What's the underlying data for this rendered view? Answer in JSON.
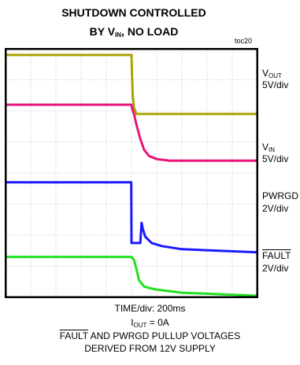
{
  "title": {
    "line1": "SHUTDOWN CONTROLLED",
    "line2_pre": "BY V",
    "line2_sub": "IN",
    "line2_post": ", NO LOAD"
  },
  "tag": "toc20",
  "colors": {
    "vout": "#a8a400",
    "vin": "#e8147a",
    "pwrgd": "#1a1aff",
    "fault": "#22e022",
    "grid": "#b8b8b8",
    "frame": "#000000"
  },
  "channels": [
    {
      "key": "vout",
      "name": "V",
      "name_sub": "OUT",
      "overline": false,
      "scale": "5V/div"
    },
    {
      "key": "vin",
      "name": "V",
      "name_sub": "IN",
      "overline": false,
      "scale": "5V/div"
    },
    {
      "key": "pwrgd",
      "name": "PWRGD",
      "name_sub": "",
      "overline": false,
      "scale": "2V/div"
    },
    {
      "key": "fault",
      "name": "FAULT",
      "name_sub": "",
      "overline": true,
      "scale": "2V/div"
    }
  ],
  "caption": {
    "time": "TIME/div: 200ms",
    "iout_pre": "I",
    "iout_sub": "OUT",
    "iout_post": " = 0A",
    "fault_word": "FAULT",
    "line3_rest": " AND PWRGD PULLUP VOLTAGES",
    "line4": "DERIVED FROM 12V SUPPLY"
  },
  "chart_data": {
    "type": "line",
    "x_divisions": 10,
    "y_divisions": 8,
    "x_unit": "div (200ms/div)",
    "y_unit": "div",
    "series": [
      {
        "name": "V OUT",
        "key": "vout",
        "x": [
          0,
          5.0,
          5.02,
          5.05,
          5.1,
          5.2,
          10
        ],
        "y": [
          7.8,
          7.8,
          7.2,
          6.5,
          6.1,
          5.9,
          5.9
        ]
      },
      {
        "name": "V IN",
        "key": "vin",
        "x": [
          0,
          5.0,
          5.02,
          5.1,
          5.2,
          5.35,
          5.5,
          5.7,
          6.0,
          6.5,
          10
        ],
        "y": [
          6.2,
          6.2,
          6.1,
          5.9,
          5.55,
          5.1,
          4.75,
          4.55,
          4.45,
          4.4,
          4.4
        ]
      },
      {
        "name": "PWRGD",
        "key": "pwrgd",
        "x": [
          0,
          4.99,
          5.0,
          5.35,
          5.4,
          5.45,
          5.55,
          5.8,
          6.2,
          7.0,
          10
        ],
        "y": [
          3.7,
          3.7,
          1.75,
          1.75,
          2.4,
          2.2,
          1.95,
          1.75,
          1.65,
          1.55,
          1.45
        ]
      },
      {
        "name": "FAULT",
        "key": "fault",
        "x": [
          0,
          5.0,
          5.1,
          5.2,
          5.3,
          5.5,
          5.7,
          6.0,
          6.5,
          7.0,
          10
        ],
        "y": [
          1.3,
          1.3,
          1.2,
          0.9,
          0.55,
          0.35,
          0.3,
          0.25,
          0.2,
          0.15,
          0.05
        ]
      }
    ]
  }
}
